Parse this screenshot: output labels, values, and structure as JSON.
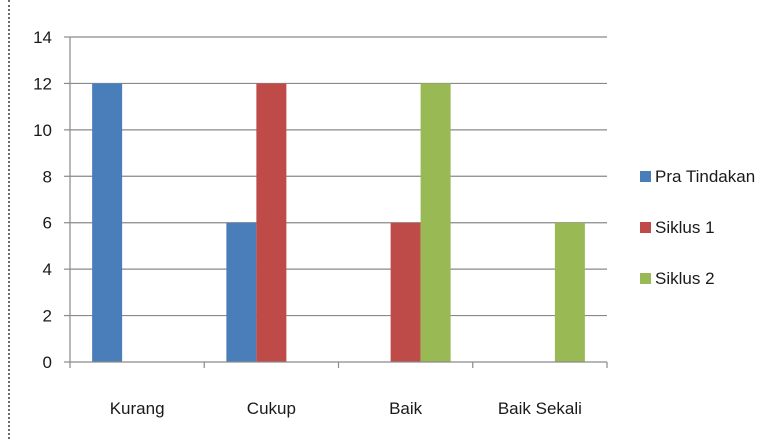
{
  "chart_data": {
    "type": "bar",
    "title": "",
    "xlabel": "",
    "ylabel": "",
    "categories": [
      "Kurang",
      "Cukup",
      "Baik",
      "Baik Sekali"
    ],
    "series": [
      {
        "name": "Pra Tindakan",
        "color": "#4a7ebb",
        "values": [
          12,
          6,
          0,
          0
        ]
      },
      {
        "name": "Siklus 1",
        "color": "#be4b48",
        "values": [
          0,
          12,
          6,
          0
        ]
      },
      {
        "name": "Siklus 2",
        "color": "#98b954",
        "values": [
          0,
          0,
          12,
          6
        ]
      }
    ],
    "ylim": [
      0,
      14
    ],
    "yticks": [
      0,
      2,
      4,
      6,
      8,
      10,
      12,
      14
    ],
    "grid": true,
    "legend_position": "right"
  }
}
